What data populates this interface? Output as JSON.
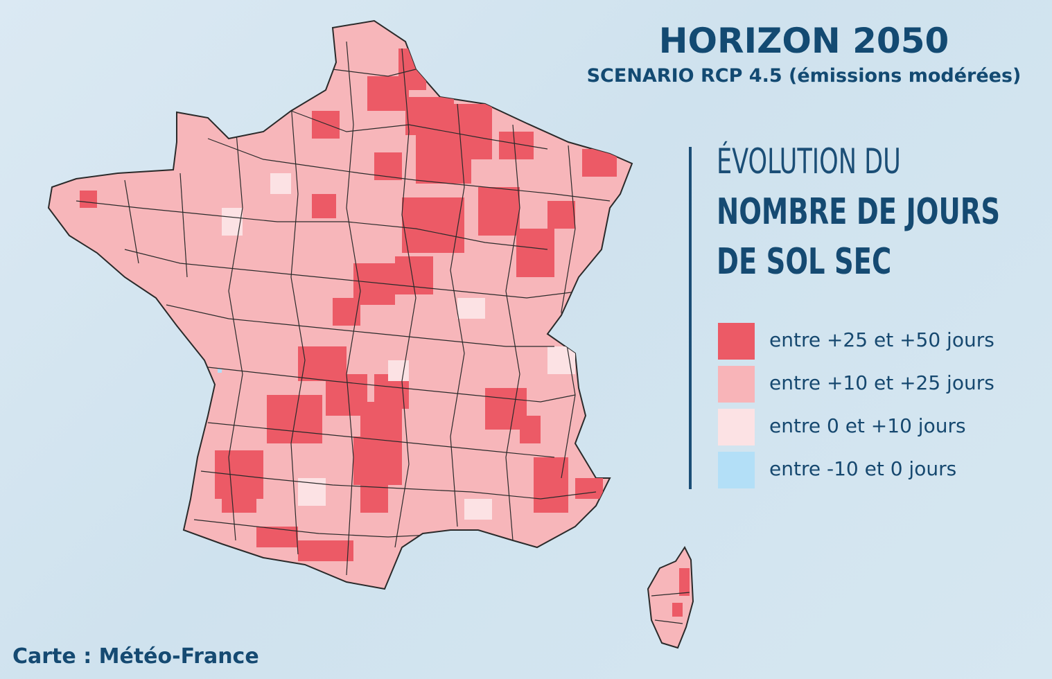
{
  "header": {
    "title": "HORIZON 2050",
    "subtitle": "SCENARIO RCP 4.5 (émissions modérées)"
  },
  "legend": {
    "heading_line1": "ÉVOLUTION DU",
    "heading_line2": "NOMBRE DE JOURS",
    "heading_line3": "DE SOL SEC",
    "items": [
      {
        "label": "entre +25 et +50 jours",
        "color": "#ec5a66"
      },
      {
        "label": "entre +10 et +25 jours",
        "color": "#f8b4b8"
      },
      {
        "label": "entre 0 et +10 jours",
        "color": "#fce2e4"
      },
      {
        "label": "entre -10 et 0 jours",
        "color": "#b3dff7"
      }
    ]
  },
  "credit": "Carte : Météo-France",
  "map": {
    "base_color": "#f7b6ba",
    "border_color": "#2a2a2a",
    "dry_hotspot_color": "#ec5a66",
    "mild_patch_color": "#fce2e4"
  }
}
